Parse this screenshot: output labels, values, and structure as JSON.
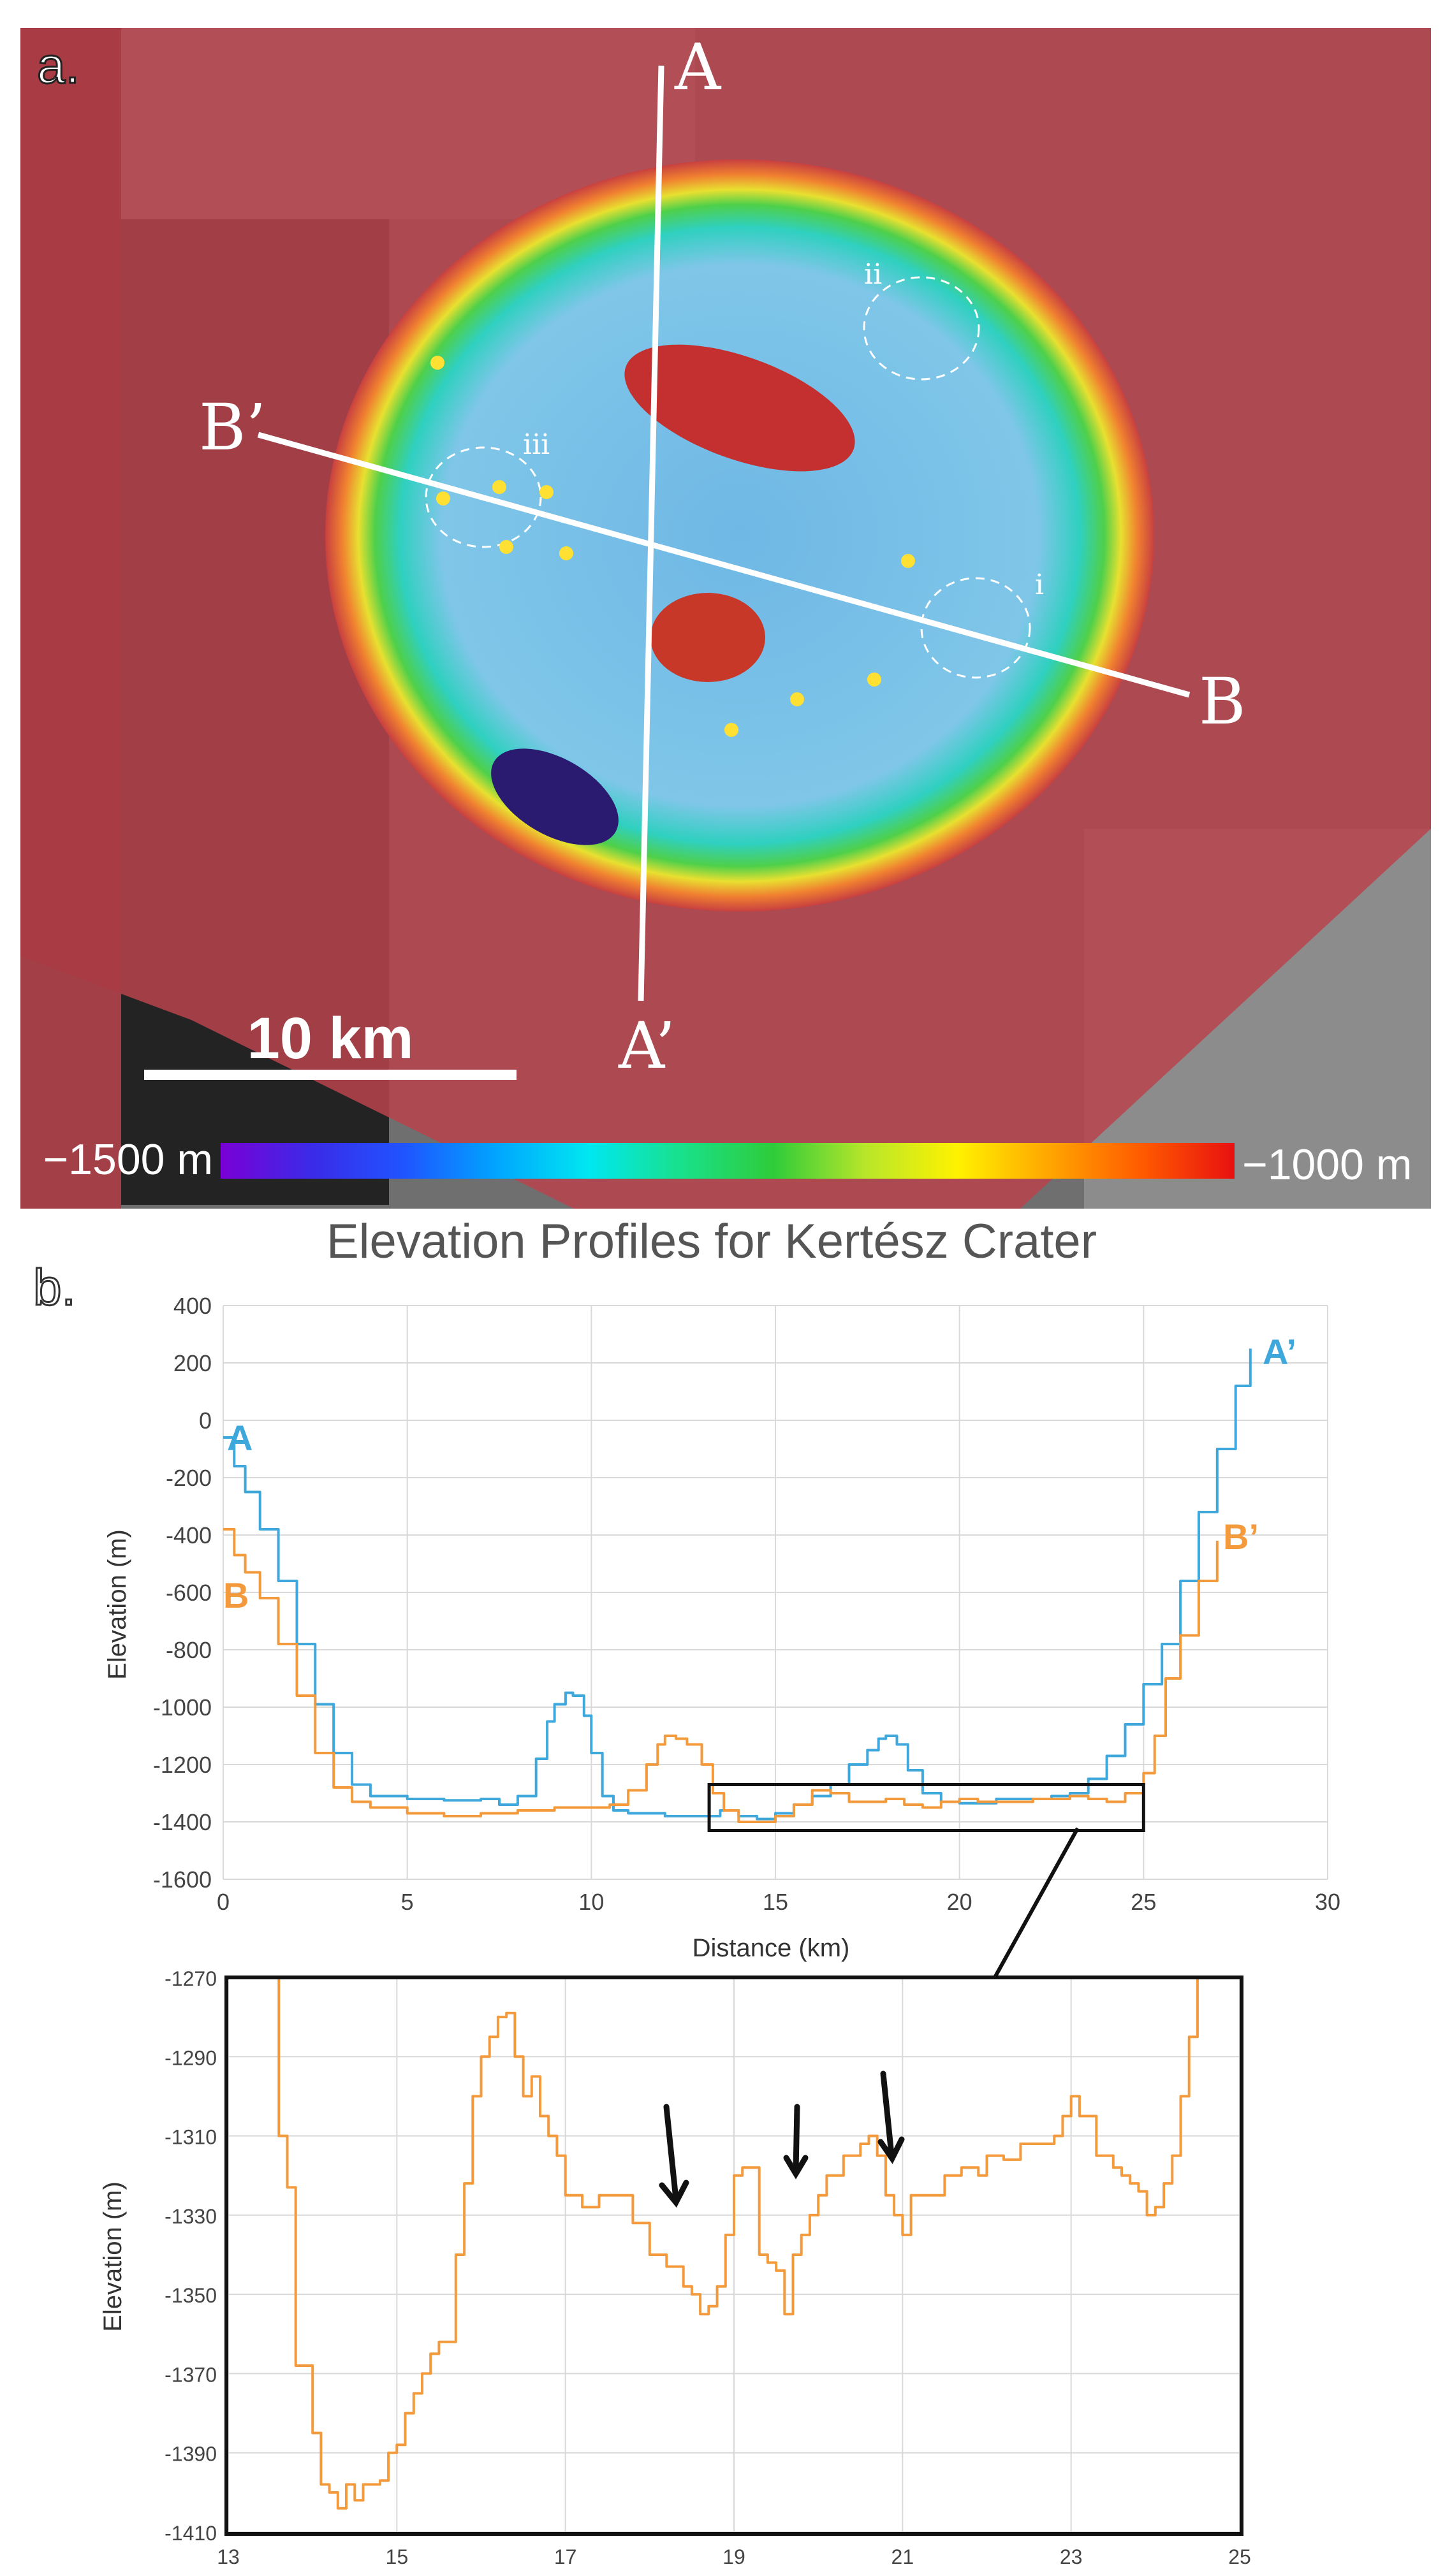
{
  "panel_a": {
    "panel_label": "a.",
    "section_labels": {
      "A": "A",
      "A_prime": "A’",
      "B": "B",
      "B_prime": "B’"
    },
    "region_labels": [
      "i",
      "ii",
      "iii"
    ],
    "scale_bar": "10 km",
    "colorbar": {
      "min_label": "−1500 m",
      "max_label": "−1000 m",
      "colors": [
        "#7a00d6",
        "#3a2be8",
        "#1f55ff",
        "#00a6ff",
        "#00e8f0",
        "#19e08a",
        "#2ecc3a",
        "#b8e62a",
        "#fff200",
        "#ffa500",
        "#ff5a00",
        "#e81010"
      ]
    }
  },
  "panel_b": {
    "panel_label": "b.",
    "colors": {
      "A": "#3ea7dc",
      "B": "#f39a3c"
    }
  },
  "chart_data": [
    {
      "type": "line",
      "title": "Elevation Profiles for Kertész Crater",
      "xlabel": "Distance (km)",
      "ylabel": "Elevation (m)",
      "xlim": [
        0,
        30
      ],
      "ylim": [
        -1600,
        400
      ],
      "xticks": [
        0,
        5,
        10,
        15,
        20,
        25,
        30
      ],
      "yticks": [
        400,
        200,
        0,
        -200,
        -400,
        -600,
        -800,
        -1000,
        -1200,
        -1400,
        -1600
      ],
      "grid": true,
      "zoom_box": {
        "x": [
          13.2,
          25
        ],
        "y": [
          -1430,
          -1270
        ]
      },
      "series": [
        {
          "name": "A–A’",
          "start_label": "A",
          "end_label": "A’",
          "x": [
            0,
            0.3,
            0.6,
            1,
            1.5,
            2,
            2.5,
            3,
            3.5,
            4,
            5,
            6,
            7,
            7.5,
            8,
            8.5,
            8.8,
            9,
            9.3,
            9.5,
            9.8,
            10,
            10.3,
            10.6,
            11,
            12,
            13,
            13.5,
            14,
            14.5,
            15,
            15.5,
            16,
            16.5,
            17,
            17.5,
            17.8,
            18,
            18.3,
            18.6,
            19,
            19.5,
            20,
            21,
            22,
            22.5,
            23,
            23.5,
            24,
            24.5,
            25,
            25.5,
            26,
            26.5,
            27,
            27.5,
            27.9
          ],
          "y": [
            -60,
            -160,
            -250,
            -380,
            -560,
            -780,
            -990,
            -1160,
            -1270,
            -1310,
            -1320,
            -1325,
            -1320,
            -1340,
            -1310,
            -1180,
            -1050,
            -990,
            -950,
            -960,
            -1030,
            -1160,
            -1310,
            -1360,
            -1370,
            -1380,
            -1380,
            -1360,
            -1380,
            -1390,
            -1370,
            -1340,
            -1310,
            -1270,
            -1200,
            -1150,
            -1110,
            -1100,
            -1130,
            -1220,
            -1300,
            -1330,
            -1335,
            -1320,
            -1320,
            -1310,
            -1300,
            -1250,
            -1170,
            -1060,
            -920,
            -780,
            -560,
            -320,
            -100,
            120,
            250
          ]
        },
        {
          "name": "B–B’",
          "start_label": "B",
          "end_label": "B’",
          "x": [
            0,
            0.3,
            0.6,
            1,
            1.5,
            2,
            2.5,
            3,
            3.5,
            4,
            5,
            6,
            7,
            8,
            9,
            10,
            10.5,
            11,
            11.5,
            11.8,
            12,
            12.3,
            12.6,
            13,
            13.3,
            13.6,
            14,
            14.5,
            15,
            15.5,
            16,
            16.5,
            17,
            17.5,
            18,
            18.5,
            19,
            19.5,
            20,
            20.5,
            21,
            22,
            23,
            23.5,
            24,
            24.5,
            25,
            25.3,
            25.6,
            26,
            26.5,
            27
          ],
          "y": [
            -380,
            -470,
            -530,
            -620,
            -780,
            -960,
            -1160,
            -1280,
            -1330,
            -1350,
            -1370,
            -1380,
            -1370,
            -1360,
            -1350,
            -1350,
            -1340,
            -1290,
            -1200,
            -1130,
            -1100,
            -1110,
            -1130,
            -1200,
            -1300,
            -1360,
            -1400,
            -1400,
            -1380,
            -1340,
            -1290,
            -1300,
            -1330,
            -1330,
            -1320,
            -1340,
            -1350,
            -1330,
            -1320,
            -1330,
            -1330,
            -1320,
            -1310,
            -1320,
            -1330,
            -1300,
            -1230,
            -1100,
            -900,
            -750,
            -560,
            -420
          ]
        }
      ]
    },
    {
      "type": "line",
      "title": "",
      "xlabel": "",
      "ylabel": "Elevation (m)",
      "xlim": [
        13,
        25
      ],
      "ylim": [
        -1410,
        -1270
      ],
      "xticks": [
        13,
        15,
        17,
        19,
        21,
        23,
        25
      ],
      "yticks": [
        -1270,
        -1290,
        -1310,
        -1330,
        -1350,
        -1370,
        -1390,
        -1410
      ],
      "grid": true,
      "series": [
        {
          "name": "B–B’ (detail)",
          "x": [
            13.5,
            13.6,
            13.7,
            13.8,
            14,
            14.1,
            14.2,
            14.3,
            14.4,
            14.5,
            14.6,
            14.8,
            14.9,
            15,
            15.1,
            15.2,
            15.3,
            15.4,
            15.5,
            15.6,
            15.7,
            15.8,
            15.9,
            16,
            16.1,
            16.2,
            16.3,
            16.4,
            16.5,
            16.6,
            16.7,
            16.8,
            16.9,
            17,
            17.2,
            17.4,
            17.6,
            17.8,
            18,
            18.2,
            18.4,
            18.5,
            18.6,
            18.7,
            18.8,
            18.9,
            19,
            19.1,
            19.2,
            19.3,
            19.4,
            19.5,
            19.6,
            19.7,
            19.8,
            19.9,
            20,
            20.1,
            20.3,
            20.5,
            20.6,
            20.7,
            20.8,
            20.9,
            21,
            21.1,
            21.3,
            21.5,
            21.7,
            21.9,
            22,
            22.2,
            22.4,
            22.6,
            22.8,
            22.9,
            23,
            23.1,
            23.3,
            23.5,
            23.6,
            23.7,
            23.8,
            23.9,
            24,
            24.1,
            24.2,
            24.3,
            24.4,
            24.5
          ],
          "y": [
            -1270,
            -1310,
            -1323,
            -1368,
            -1385,
            -1398,
            -1400,
            -1404,
            -1398,
            -1402,
            -1398,
            -1397,
            -1390,
            -1388,
            -1380,
            -1375,
            -1370,
            -1365,
            -1362,
            -1362,
            -1340,
            -1322,
            -1300,
            -1290,
            -1285,
            -1280,
            -1279,
            -1290,
            -1300,
            -1295,
            -1305,
            -1310,
            -1315,
            -1325,
            -1328,
            -1325,
            -1325,
            -1332,
            -1340,
            -1343,
            -1348,
            -1350,
            -1355,
            -1353,
            -1348,
            -1335,
            -1320,
            -1318,
            -1318,
            -1340,
            -1342,
            -1344,
            -1355,
            -1340,
            -1335,
            -1330,
            -1325,
            -1320,
            -1315,
            -1312,
            -1310,
            -1315,
            -1325,
            -1330,
            -1335,
            -1325,
            -1325,
            -1320,
            -1318,
            -1320,
            -1315,
            -1316,
            -1312,
            -1312,
            -1310,
            -1305,
            -1300,
            -1305,
            -1315,
            -1318,
            -1320,
            -1322,
            -1324,
            -1330,
            -1328,
            -1322,
            -1315,
            -1300,
            -1285,
            -1270
          ]
        }
      ]
    }
  ]
}
